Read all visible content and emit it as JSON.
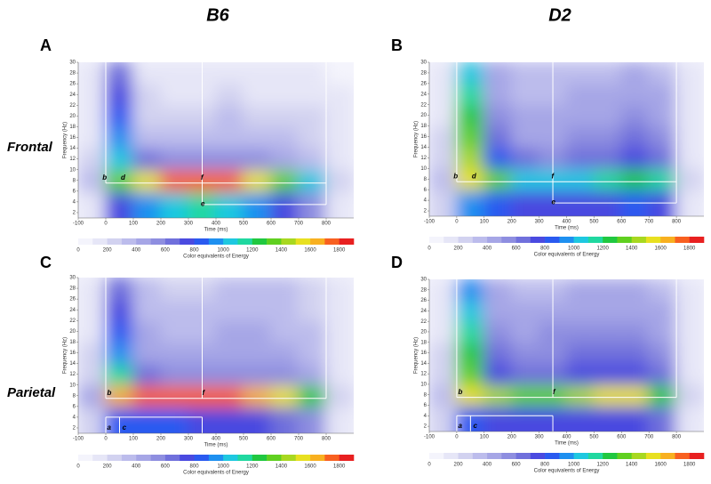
{
  "column_titles": [
    "B6",
    "D2"
  ],
  "row_titles": [
    "Frontal",
    "Parietal"
  ],
  "chart_data": [
    {
      "type": "heatmap",
      "panel": "A",
      "xlabel": "Time (ms)",
      "ylabel": "Frequency (Hz)",
      "colorbar_label": "Color equivalents of Energy",
      "annotations": [
        "b",
        "d",
        "f",
        "e"
      ],
      "xlim": [
        -100,
        900
      ],
      "xticks": [
        -100,
        0,
        100,
        200,
        300,
        400,
        500,
        600,
        700,
        800
      ],
      "ylim": [
        1,
        30
      ],
      "yticks": [
        2,
        4,
        6,
        8,
        10,
        12,
        14,
        16,
        18,
        20,
        22,
        24,
        26,
        28,
        30
      ],
      "x": [
        -50,
        50,
        150,
        250,
        350,
        450,
        550,
        650,
        750,
        850
      ],
      "y": [
        4,
        8,
        12,
        16,
        20,
        24,
        28
      ],
      "z": [
        [
          150,
          700,
          900,
          1000,
          1100,
          1000,
          900,
          700,
          500,
          150
        ],
        [
          300,
          1300,
          1500,
          1700,
          1750,
          1700,
          1500,
          1300,
          1000,
          200
        ],
        [
          200,
          1000,
          600,
          550,
          500,
          550,
          500,
          450,
          350,
          150
        ],
        [
          150,
          900,
          350,
          300,
          300,
          350,
          350,
          300,
          250,
          100
        ],
        [
          120,
          800,
          250,
          200,
          200,
          300,
          250,
          220,
          200,
          100
        ],
        [
          100,
          750,
          200,
          150,
          150,
          200,
          180,
          170,
          180,
          100
        ],
        [
          100,
          650,
          150,
          120,
          120,
          120,
          120,
          120,
          150,
          80
        ]
      ],
      "clim": [
        0,
        1900
      ],
      "cticks": [
        0,
        200,
        400,
        600,
        800,
        1000,
        1200,
        1400,
        1600,
        1800
      ],
      "colorscale": [
        "#f4f4fc",
        "#e6e6f7",
        "#d2d2f0",
        "#bcbcec",
        "#a6a6e6",
        "#8e8ee0",
        "#7070dc",
        "#4a4ae0",
        "#2a5af0",
        "#1e90f0",
        "#1ec8e0",
        "#20d8a0",
        "#20c840",
        "#60d020",
        "#a8d820",
        "#e8e020",
        "#f8b020",
        "#f86020",
        "#e82020"
      ]
    },
    {
      "type": "heatmap",
      "panel": "B",
      "xlabel": "Time (ms)",
      "ylabel": "Frequency (Hz)",
      "colorbar_label": "Color equivalents of Energy",
      "annotations": [
        "b",
        "d",
        "f",
        "e"
      ],
      "xlim": [
        -100,
        900
      ],
      "xticks": [
        -100,
        0,
        100,
        200,
        300,
        400,
        500,
        600,
        700,
        800
      ],
      "ylim": [
        1,
        30
      ],
      "yticks": [
        2,
        4,
        6,
        8,
        10,
        12,
        14,
        16,
        18,
        20,
        22,
        24,
        26,
        28,
        30
      ],
      "x": [
        -50,
        50,
        150,
        250,
        350,
        450,
        550,
        650,
        750,
        850
      ],
      "y": [
        4,
        8,
        12,
        16,
        20,
        24,
        28
      ],
      "z": [
        [
          200,
          900,
          800,
          700,
          700,
          700,
          750,
          800,
          700,
          150
        ],
        [
          300,
          1500,
          1300,
          1000,
          1000,
          1050,
          1150,
          1200,
          1100,
          200
        ],
        [
          250,
          1400,
          800,
          600,
          550,
          600,
          650,
          700,
          650,
          150
        ],
        [
          200,
          1300,
          600,
          450,
          450,
          500,
          550,
          600,
          550,
          150
        ],
        [
          180,
          1200,
          500,
          400,
          400,
          450,
          450,
          500,
          450,
          150
        ],
        [
          150,
          1100,
          450,
          350,
          350,
          400,
          400,
          450,
          400,
          120
        ],
        [
          150,
          1000,
          400,
          300,
          300,
          350,
          350,
          400,
          350,
          120
        ]
      ],
      "clim": [
        0,
        1900
      ],
      "cticks": [
        0,
        200,
        400,
        600,
        800,
        1000,
        1200,
        1400,
        1600,
        1800
      ],
      "colorscale": [
        "#f4f4fc",
        "#e6e6f7",
        "#d2d2f0",
        "#bcbcec",
        "#a6a6e6",
        "#8e8ee0",
        "#7070dc",
        "#4a4ae0",
        "#2a5af0",
        "#1e90f0",
        "#1ec8e0",
        "#20d8a0",
        "#20c840",
        "#60d020",
        "#a8d820",
        "#e8e020",
        "#f8b020",
        "#f86020",
        "#e82020"
      ]
    },
    {
      "type": "heatmap",
      "panel": "C",
      "xlabel": "Time (ms)",
      "ylabel": "Frequency (Hz)",
      "colorbar_label": "Color equivalents of Energy",
      "annotations": [
        "b",
        "f",
        "a",
        "c"
      ],
      "xlim": [
        -100,
        900
      ],
      "xticks": [
        -100,
        0,
        100,
        200,
        300,
        400,
        500,
        600,
        700,
        800
      ],
      "ylim": [
        1,
        30
      ],
      "yticks": [
        2,
        4,
        6,
        8,
        10,
        12,
        14,
        16,
        18,
        20,
        22,
        24,
        26,
        28,
        30
      ],
      "x": [
        -50,
        50,
        150,
        250,
        350,
        450,
        550,
        650,
        750,
        850
      ],
      "y": [
        4,
        8,
        12,
        16,
        20,
        24,
        28
      ],
      "z": [
        [
          200,
          800,
          800,
          800,
          750,
          750,
          700,
          650,
          500,
          150
        ],
        [
          400,
          1600,
          1750,
          1750,
          1700,
          1700,
          1650,
          1500,
          1200,
          200
        ],
        [
          250,
          1100,
          650,
          550,
          550,
          550,
          550,
          500,
          400,
          150
        ],
        [
          200,
          900,
          450,
          400,
          400,
          450,
          450,
          400,
          300,
          120
        ],
        [
          150,
          800,
          400,
          350,
          350,
          400,
          400,
          350,
          300,
          120
        ],
        [
          150,
          700,
          350,
          300,
          300,
          350,
          350,
          300,
          250,
          100
        ],
        [
          120,
          650,
          300,
          250,
          250,
          300,
          300,
          300,
          250,
          100
        ]
      ],
      "clim": [
        0,
        1900
      ],
      "cticks": [
        0,
        200,
        400,
        600,
        800,
        1000,
        1200,
        1400,
        1600,
        1800
      ],
      "colorscale": [
        "#f4f4fc",
        "#e6e6f7",
        "#d2d2f0",
        "#bcbcec",
        "#a6a6e6",
        "#8e8ee0",
        "#7070dc",
        "#4a4ae0",
        "#2a5af0",
        "#1e90f0",
        "#1ec8e0",
        "#20d8a0",
        "#20c840",
        "#60d020",
        "#a8d820",
        "#e8e020",
        "#f8b020",
        "#f86020",
        "#e82020"
      ]
    },
    {
      "type": "heatmap",
      "panel": "D",
      "xlabel": "Time (ms)",
      "ylabel": "Frequency (Hz)",
      "colorbar_label": "Color equivalents of Energy",
      "annotations": [
        "b",
        "f",
        "a",
        "c"
      ],
      "xlim": [
        -100,
        900
      ],
      "xticks": [
        -100,
        0,
        100,
        200,
        300,
        400,
        500,
        600,
        700,
        800
      ],
      "ylim": [
        1,
        30
      ],
      "yticks": [
        2,
        4,
        6,
        8,
        10,
        12,
        14,
        16,
        18,
        20,
        22,
        24,
        26,
        28,
        30
      ],
      "x": [
        -50,
        50,
        150,
        250,
        350,
        450,
        550,
        650,
        750,
        850
      ],
      "y": [
        4,
        8,
        12,
        16,
        20,
        24,
        28
      ],
      "z": [
        [
          200,
          800,
          750,
          700,
          700,
          700,
          750,
          750,
          600,
          150
        ],
        [
          300,
          1500,
          1400,
          1350,
          1350,
          1400,
          1500,
          1500,
          1200,
          200
        ],
        [
          250,
          1300,
          750,
          650,
          650,
          700,
          700,
          700,
          600,
          150
        ],
        [
          200,
          1200,
          600,
          500,
          550,
          600,
          600,
          650,
          550,
          150
        ],
        [
          150,
          1100,
          500,
          450,
          500,
          550,
          550,
          550,
          450,
          120
        ],
        [
          150,
          1000,
          450,
          400,
          400,
          450,
          450,
          450,
          400,
          120
        ],
        [
          120,
          900,
          400,
          350,
          350,
          400,
          400,
          400,
          350,
          100
        ]
      ],
      "clim": [
        0,
        1900
      ],
      "cticks": [
        0,
        200,
        400,
        600,
        800,
        1000,
        1200,
        1400,
        1600,
        1800
      ],
      "colorscale": [
        "#f4f4fc",
        "#e6e6f7",
        "#d2d2f0",
        "#bcbcec",
        "#a6a6e6",
        "#8e8ee0",
        "#7070dc",
        "#4a4ae0",
        "#2a5af0",
        "#1e90f0",
        "#1ec8e0",
        "#20d8a0",
        "#20c840",
        "#60d020",
        "#a8d820",
        "#e8e020",
        "#f8b020",
        "#f86020",
        "#e82020"
      ]
    }
  ]
}
